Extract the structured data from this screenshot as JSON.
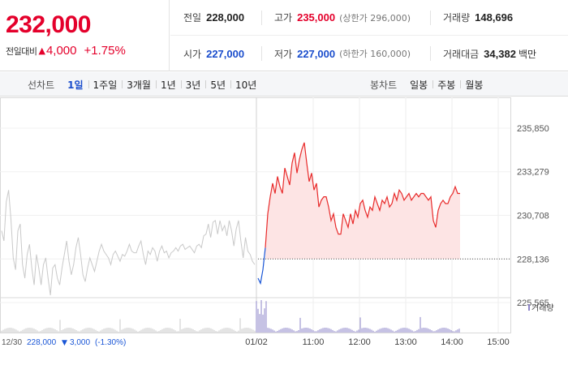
{
  "quote": {
    "price": "232,000",
    "change_label": "전일대비",
    "change_value": "4,000",
    "change_pct": "+1.75%",
    "rows": [
      [
        {
          "label": "전일",
          "value": "228,000",
          "color": "normal"
        },
        {
          "label": "고가",
          "value": "235,000",
          "sub": "(상한가 296,000)",
          "color": "red"
        },
        {
          "label": "거래량",
          "value": "148,696",
          "color": "normal"
        }
      ],
      [
        {
          "label": "시가",
          "value": "227,000",
          "color": "blue"
        },
        {
          "label": "저가",
          "value": "227,000",
          "sub": "(하한가 160,000)",
          "color": "blue"
        },
        {
          "label": "거래대금",
          "value": "34,382",
          "unit": "백만",
          "color": "normal"
        }
      ]
    ]
  },
  "tabs": {
    "line_label": "선차트",
    "line": [
      "1일",
      "1주일",
      "3개월",
      "1년",
      "3년",
      "5년",
      "10년"
    ],
    "line_active": "1일",
    "candle_label": "봉차트",
    "candle": [
      "일봉",
      "주봉",
      "월봉"
    ]
  },
  "chart_data": {
    "type": "line",
    "y_ticks": [
      "235,850",
      "233,279",
      "230,708",
      "228,136",
      "225,565"
    ],
    "y_values": [
      235850,
      233279,
      230708,
      228136,
      225565
    ],
    "x_ticks": [
      "01/02",
      "11:00",
      "12:00",
      "13:00",
      "14:00",
      "15:00"
    ],
    "baseline": 228136,
    "volume_label": "거래량",
    "prev_day": {
      "date": "12/30",
      "close": "228,000",
      "change": "3,000",
      "change_pct": "(-1.30%)"
    },
    "colors": {
      "up": "#e82a2a",
      "down": "#1a56d6",
      "fill": "#fde4e4",
      "prev": "#c9c9c9"
    },
    "prev_series": [
      229.8,
      229.2,
      231.5,
      232.2,
      230.5,
      228.2,
      227.5,
      229.8,
      230.2,
      227.8,
      227.0,
      228.4,
      229.0,
      227.6,
      226.6,
      228.4,
      227.6,
      226.6,
      227.8,
      228.2,
      227.0,
      226.0,
      227.6,
      227.8,
      227.0,
      226.6,
      227.6,
      228.4,
      229.2,
      228.0,
      227.2,
      227.8,
      228.8,
      229.4,
      228.4,
      227.2,
      226.8,
      227.6,
      228.2,
      227.8,
      227.4,
      228.0,
      228.6,
      229.0,
      228.6,
      228.4,
      228.2,
      227.8,
      228.4,
      228.6,
      228.3,
      228.0,
      228.4,
      228.3,
      228.6,
      229.0,
      228.6,
      228.5,
      228.5,
      228.9,
      229.2,
      228.4,
      227.8,
      228.6,
      228.4,
      228.8,
      228.6,
      228.0,
      228.6,
      228.9,
      228.5,
      228.6,
      228.2,
      228.5,
      228.6,
      228.8,
      228.6,
      228.9,
      229.0,
      228.7,
      228.8,
      228.9,
      228.7,
      228.5,
      228.9,
      229.0,
      228.8,
      229.5,
      229.6,
      230.2,
      229.4,
      230.3,
      230.4,
      229.6,
      230.4,
      229.8,
      230.1,
      229.5,
      230.4,
      229.8,
      228.9,
      229.9,
      230.4,
      229.2,
      228.2,
      229.4,
      228.6,
      228.4,
      228.0,
      227.8
    ],
    "today_series": [
      227.0,
      226.7,
      227.5,
      228.8,
      230.8,
      231.8,
      232.6,
      232.0,
      233.0,
      232.4,
      232.0,
      233.5,
      233.0,
      232.5,
      233.8,
      234.4,
      233.2,
      234.0,
      234.6,
      235.0,
      233.8,
      232.7,
      233.2,
      232.2,
      232.6,
      231.2,
      231.6,
      231.8,
      231.8,
      231.2,
      230.4,
      230.8,
      230.0,
      229.6,
      229.6,
      230.8,
      230.4,
      230.0,
      230.8,
      230.2,
      231.0,
      230.6,
      231.4,
      231.6,
      231.0,
      230.6,
      231.2,
      231.0,
      231.8,
      231.4,
      231.0,
      231.6,
      231.4,
      231.8,
      231.2,
      231.4,
      232.0,
      231.6,
      232.2,
      232.0,
      231.6,
      231.8,
      232.0,
      231.6,
      231.8,
      232.0,
      231.8,
      232.0,
      232.0,
      231.8,
      231.6,
      231.8,
      230.4,
      230.0,
      231.0,
      231.4,
      231.6,
      231.4,
      231.4,
      231.8,
      232.0,
      232.4,
      232.0,
      232.0
    ]
  }
}
